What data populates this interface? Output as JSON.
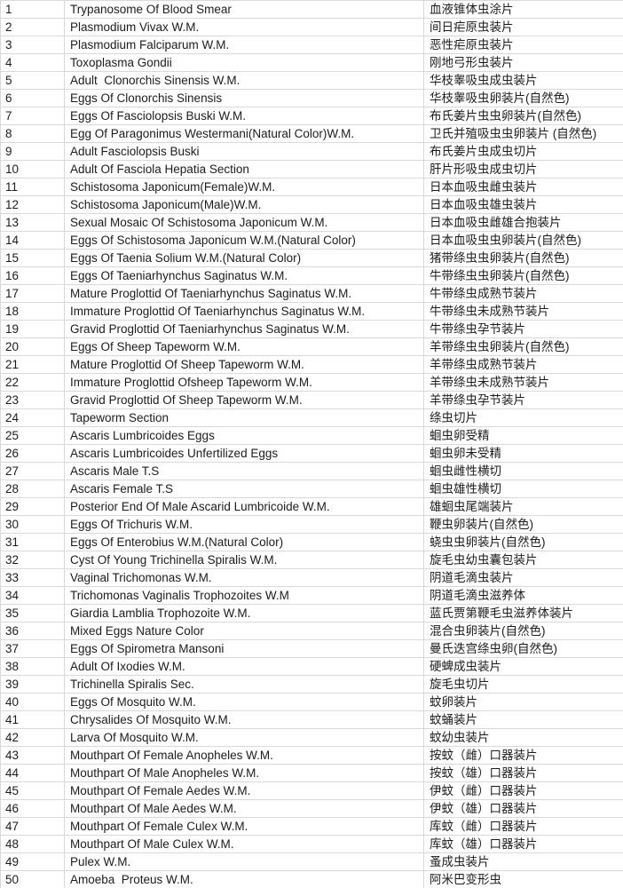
{
  "colors": {
    "background": "#ffffff",
    "grid_line": "#d9d9d9",
    "text": "#1c1c1c"
  },
  "table": {
    "rows": [
      {
        "no": "1",
        "en": "Trypanosome Of Blood Smear",
        "zh": "血液锥体虫涂片"
      },
      {
        "no": "2",
        "en": "Plasmodium Vivax W.M.",
        "zh": "间日疟原虫装片"
      },
      {
        "no": "3",
        "en": "Plasmodium Falciparum W.M.",
        "zh": "恶性疟原虫装片"
      },
      {
        "no": "4",
        "en": "Toxoplasma Gondii",
        "zh": "刚地弓形虫装片"
      },
      {
        "no": "5",
        "en": "Adult  Clonorchis Sinensis W.M.",
        "zh": "华枝睾吸虫成虫装片"
      },
      {
        "no": "6",
        "en": "Eggs Of Clonorchis Sinensis",
        "zh": "华枝睾吸虫卵装片(自然色)"
      },
      {
        "no": "7",
        "en": "Eggs Of Fasciolopsis Buski W.M.",
        "zh": "布氏姜片虫虫卵装片(自然色)"
      },
      {
        "no": "8",
        "en": "Egg Of Paragonimus Westermani(Natural Color)W.M.",
        "zh": "卫氏并殖吸虫虫卵装片 (自然色)"
      },
      {
        "no": "9",
        "en": "Adult Fasciolopsis Buski",
        "zh": "布氏姜片虫成虫切片"
      },
      {
        "no": "10",
        "en": "Adult Of Fasciola Hepatia Section",
        "zh": "肝片形吸虫成虫切片"
      },
      {
        "no": "11",
        "en": "Schistosoma Japonicum(Female)W.M.",
        "zh": "日本血吸虫雌虫装片"
      },
      {
        "no": "12",
        "en": "Schistosoma Japonicum(Male)W.M.",
        "zh": "日本血吸虫雄虫装片"
      },
      {
        "no": "13",
        "en": "Sexual Mosaic Of Schistosoma Japonicum W.M.",
        "zh": "日本血吸虫雌雄合抱装片"
      },
      {
        "no": "14",
        "en": "Eggs Of Schistosoma Japonicum W.M.(Natural Color)",
        "zh": "日本血吸虫虫卵装片(自然色)"
      },
      {
        "no": "15",
        "en": "Eggs Of Taenia Solium W.M.(Natural Color)",
        "zh": "猪带绦虫虫卵装片(自然色)"
      },
      {
        "no": "16",
        "en": "Eggs Of Taeniarhynchus Saginatus W.M.",
        "zh": "牛带绦虫虫卵装片(自然色)"
      },
      {
        "no": "17",
        "en": "Mature Proglottid Of Taeniarhynchus Saginatus W.M.",
        "zh": "牛带绦虫成熟节装片"
      },
      {
        "no": "18",
        "en": "Immature Proglottid Of Taeniarhynchus Saginatus W.M.",
        "zh": "牛带绦虫未成熟节装片"
      },
      {
        "no": "19",
        "en": "Gravid Proglottid Of Taeniarhynchus Saginatus W.M.",
        "zh": "牛带绦虫孕节装片"
      },
      {
        "no": "20",
        "en": "Eggs Of Sheep Tapeworm W.M.",
        "zh": "羊带绦虫虫卵装片(自然色)"
      },
      {
        "no": "21",
        "en": "Mature Proglottid Of Sheep Tapeworm W.M.",
        "zh": "羊带绦虫成熟节装片"
      },
      {
        "no": "22",
        "en": "Immature Proglottid Ofsheep Tapeworm W.M.",
        "zh": "羊带绦虫未成熟节装片"
      },
      {
        "no": "23",
        "en": "Gravid Proglottid Of Sheep Tapeworm W.M.",
        "zh": "羊带绦虫孕节装片"
      },
      {
        "no": "24",
        "en": "Tapeworm Section",
        "zh": "绦虫切片"
      },
      {
        "no": "25",
        "en": "Ascaris Lumbricoides Eggs",
        "zh": "蛔虫卵受精"
      },
      {
        "no": "26",
        "en": "Ascaris Lumbricoides Unfertilized Eggs",
        "zh": "蛔虫卵未受精"
      },
      {
        "no": "27",
        "en": "Ascaris Male T.S",
        "zh": "蛔虫雌性横切"
      },
      {
        "no": "28",
        "en": "Ascaris Female T.S",
        "zh": "蛔虫雄性横切"
      },
      {
        "no": "29",
        "en": "Posterior End Of Male Ascarid Lumbricoide W.M.",
        "zh": "雄蛔虫尾端装片"
      },
      {
        "no": "30",
        "en": "Eggs Of Trichuris W.M.",
        "zh": "鞭虫卵装片(自然色)"
      },
      {
        "no": "31",
        "en": "Eggs Of Enterobius W.M.(Natural Color)",
        "zh": "蛲虫虫卵装片(自然色)"
      },
      {
        "no": "32",
        "en": "Cyst Of Young Trichinella Spiralis W.M.",
        "zh": "旋毛虫幼虫囊包装片"
      },
      {
        "no": "33",
        "en": "Vaginal Trichomonas W.M.",
        "zh": "阴道毛滴虫装片"
      },
      {
        "no": "34",
        "en": "Trichomonas Vaginalis Trophozoites W.M",
        "zh": "阴道毛滴虫滋养体"
      },
      {
        "no": "35",
        "en": "Giardia Lamblia Trophozoite W.M.",
        "zh": "蓝氏贾第鞭毛虫滋养体装片"
      },
      {
        "no": "36",
        "en": "Mixed Eggs Nature Color",
        "zh": "混合虫卵装片(自然色)"
      },
      {
        "no": "37",
        "en": "Eggs Of Spirometra Mansoni",
        "zh": "曼氏迭宫绦虫卵(自然色)"
      },
      {
        "no": "38",
        "en": "Adult Of Ixodies W.M.",
        "zh": "硬蜱成虫装片"
      },
      {
        "no": "39",
        "en": "Trichinella Spiralis Sec.",
        "zh": "旋毛虫切片"
      },
      {
        "no": "40",
        "en": "Eggs Of Mosquito W.M.",
        "zh": "蚊卵装片"
      },
      {
        "no": "41",
        "en": "Chrysalides Of Mosquito W.M.",
        "zh": "蚊蛹装片"
      },
      {
        "no": "42",
        "en": "Larva Of Mosquito W.M.",
        "zh": "蚊幼虫装片"
      },
      {
        "no": "43",
        "en": "Mouthpart Of Female Anopheles W.M.",
        "zh": "按蚊（雌）口器装片"
      },
      {
        "no": "44",
        "en": "Mouthpart Of Male Anopheles W.M.",
        "zh": "按蚊（雄）口器装片"
      },
      {
        "no": "45",
        "en": "Mouthpart Of Female Aedes W.M.",
        "zh": "伊蚊（雌）口器装片"
      },
      {
        "no": "46",
        "en": "Mouthpart Of Male Aedes W.M.",
        "zh": "伊蚊（雄）口器装片"
      },
      {
        "no": "47",
        "en": "Mouthpart Of Female Culex W.M.",
        "zh": "库蚊（雌）口器装片"
      },
      {
        "no": "48",
        "en": "Mouthpart Of Male Culex W.M.",
        "zh": "库蚊（雄）口器装片"
      },
      {
        "no": "49",
        "en": "Pulex W.M.",
        "zh": "蚤成虫装片"
      },
      {
        "no": "50",
        "en": "Amoeba  Proteus W.M.",
        "zh": "阿米巴变形虫"
      }
    ]
  }
}
